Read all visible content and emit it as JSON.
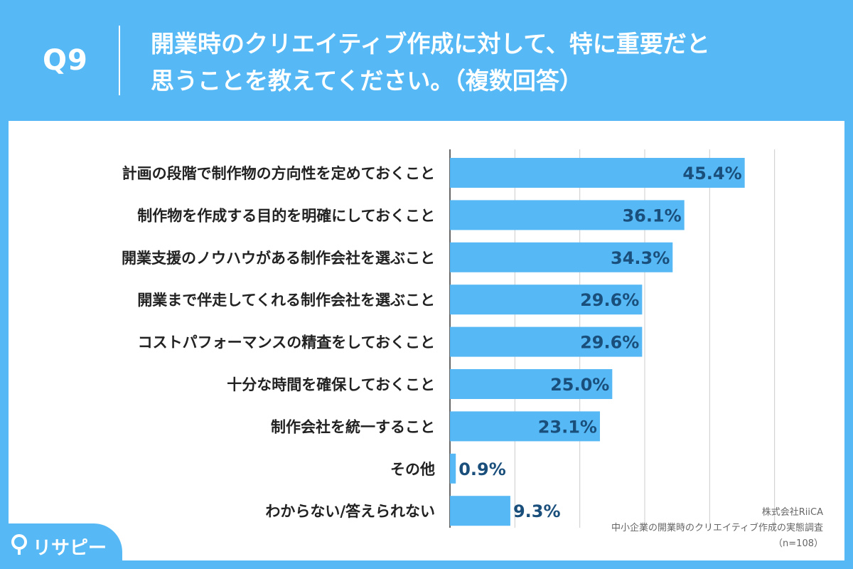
{
  "header": {
    "question_number": "Q9",
    "title_line1": "開業時のクリエイティブ作成に対して、特に重要だと",
    "title_line2": "思うことを教えてください。（複数回答）"
  },
  "colors": {
    "background": "#56b9f5",
    "bar": "#56b9f5",
    "value_label": "#1a4f7c",
    "category_label": "#222222",
    "grid": "#cccccc",
    "axis": "#333333",
    "credit_text": "#666666"
  },
  "chart_data": {
    "type": "bar",
    "orientation": "horizontal",
    "categories": [
      "計画の段階で制作物の方向性を定めておくこと",
      "制作物を作成する目的を明確にしておくこと",
      "開業支援のノウハウがある制作会社を選ぶこと",
      "開業まで伴走してくれる制作会社を選ぶこと",
      "コストパフォーマンスの精査をしておくこと",
      "十分な時間を確保しておくこと",
      "制作会社を統一すること",
      "その他",
      "わからない/答えられない"
    ],
    "values": [
      45.4,
      36.1,
      34.3,
      29.6,
      29.6,
      25.0,
      23.1,
      0.9,
      9.3
    ],
    "value_labels": [
      "45.4%",
      "36.1%",
      "34.3%",
      "29.6%",
      "29.6%",
      "25.0%",
      "23.1%",
      "0.9%",
      "9.3%"
    ],
    "xlim": [
      0,
      60
    ],
    "grid": true,
    "legend": false
  },
  "logo": {
    "icon": "location-pin-icon",
    "text": "リサピー"
  },
  "credit": {
    "company": "株式会社RiiCA",
    "survey": "中小企業の開業時のクリエイティブ作成の実態調査",
    "sample": "（n=108）"
  }
}
